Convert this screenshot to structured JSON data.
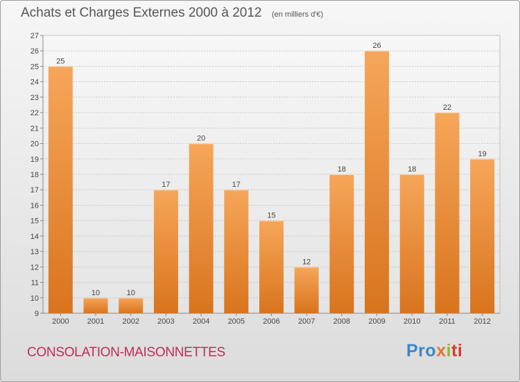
{
  "header": {
    "title": "Achats et Charges Externes 2000 à 2012",
    "subtitle": "(en milliers d'€)"
  },
  "footer": {
    "commune": "CONSOLATION-MAISONNETTES",
    "logo_parts": [
      "Pro",
      "x",
      "i",
      "ti"
    ]
  },
  "colors": {
    "bar_top": "#f6a65a",
    "bar_bottom": "#d9741d",
    "grid": "#c8c8c8",
    "axis_text": "#444444",
    "commune_text": "#c22a54"
  },
  "chart_data": {
    "type": "bar",
    "title": "Achats et Charges Externes 2000 à 2012",
    "subtitle": "(en milliers d'€)",
    "categories": [
      "2000",
      "2001",
      "2002",
      "2003",
      "2004",
      "2005",
      "2006",
      "2007",
      "2008",
      "2009",
      "2010",
      "2011",
      "2012"
    ],
    "values": [
      25,
      10,
      10,
      17,
      20,
      17,
      15,
      12,
      18,
      26,
      18,
      22,
      19
    ],
    "ylim": [
      9,
      27
    ],
    "yticks": [
      9,
      10,
      11,
      12,
      13,
      14,
      15,
      16,
      17,
      18,
      19,
      20,
      21,
      22,
      23,
      24,
      25,
      26,
      27
    ],
    "grid": true,
    "data_labels": true
  }
}
